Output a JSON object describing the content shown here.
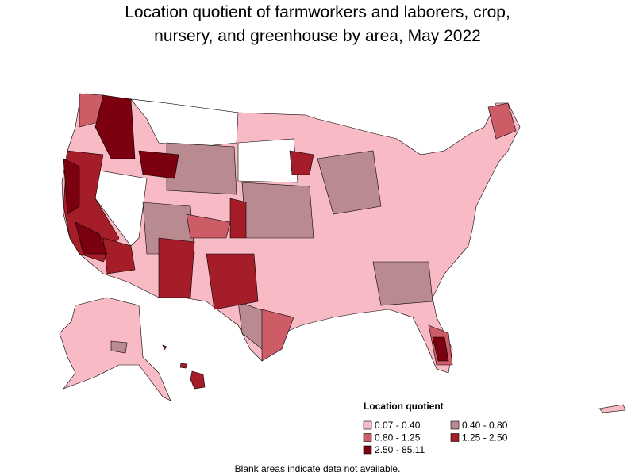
{
  "title": [
    "Location quotient of farmworkers and laborers, crop,",
    "nursery, and greenhouse by area, May 2022"
  ],
  "legend": {
    "title": "Location quotient",
    "items": [
      {
        "label": "0.07 - 0.40",
        "color": "#f8bac4"
      },
      {
        "label": "0.40 - 0.80",
        "color": "#b98a8f"
      },
      {
        "label": "0.80 - 1.25",
        "color": "#cd5c66"
      },
      {
        "label": "1.25 - 2.50",
        "color": "#a51d28"
      },
      {
        "label": "2.50 - 85.11",
        "color": "#7b0010"
      }
    ]
  },
  "footnote": "Blank areas indicate data not available."
}
